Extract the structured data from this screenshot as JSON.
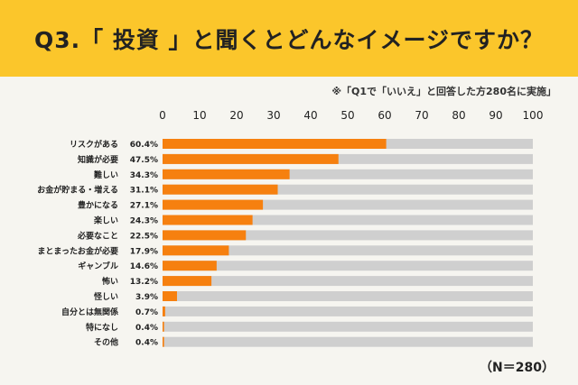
{
  "header": {
    "title": "Q3.「 投資 」と聞くとどんなイメージですか？"
  },
  "note": "※「Q1で「いいえ」と回答した方280名に実施」",
  "sample_size_label": "（N＝280）",
  "colors": {
    "header_bg": "#fbc62b",
    "bar": "#f6800f",
    "track": "#cfcfcf",
    "page_bg": "#f6f5f0"
  },
  "chart_data": {
    "type": "bar",
    "orientation": "horizontal",
    "xlim": [
      0,
      100
    ],
    "x_ticks": [
      0,
      10,
      20,
      30,
      40,
      50,
      60,
      70,
      80,
      90,
      100
    ],
    "categories": [
      "リスクがある",
      "知識が必要",
      "難しい",
      "お金が貯まる・増える",
      "豊かになる",
      "楽しい",
      "必要なこと",
      "まとまったお金が必要",
      "ギャンブル",
      "怖い",
      "怪しい",
      "自分とは無関係",
      "特になし",
      "その他"
    ],
    "values": [
      60.4,
      47.5,
      34.3,
      31.1,
      27.1,
      24.3,
      22.5,
      17.9,
      14.6,
      13.2,
      3.9,
      0.7,
      0.4,
      0.4
    ],
    "value_labels": [
      "60.4%",
      "47.5%",
      "34.3%",
      "31.1%",
      "27.1%",
      "24.3%",
      "22.5%",
      "17.9%",
      "14.6%",
      "13.2%",
      "3.9%",
      "0.7%",
      "0.4%",
      "0.4%"
    ]
  }
}
